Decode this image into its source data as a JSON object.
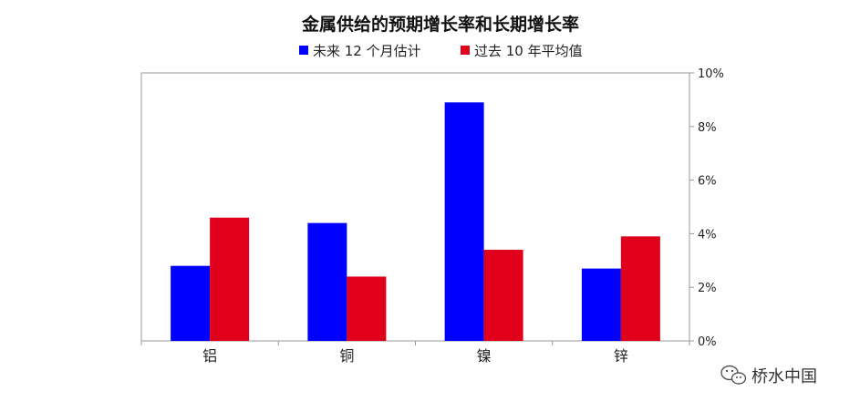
{
  "chart_data": {
    "type": "bar",
    "title": "金属供给的预期增长率和长期增长率",
    "categories": [
      "铝",
      "铜",
      "镍",
      "锌"
    ],
    "series": [
      {
        "name": "未来 12 个月估计",
        "color": "#0000ff",
        "values": [
          2.8,
          4.4,
          8.9,
          2.7
        ]
      },
      {
        "name": "过去 10 年平均值",
        "color": "#e0001b",
        "values": [
          4.6,
          2.4,
          3.4,
          3.9
        ]
      }
    ],
    "y_ticks": [
      "0%",
      "2%",
      "4%",
      "6%",
      "8%",
      "10%"
    ],
    "ylim": [
      0,
      10
    ],
    "y_axis_side": "right",
    "legend_position": "top",
    "grid": false
  },
  "watermark": {
    "text": "桥水中国",
    "icon": "wechat-icon"
  }
}
